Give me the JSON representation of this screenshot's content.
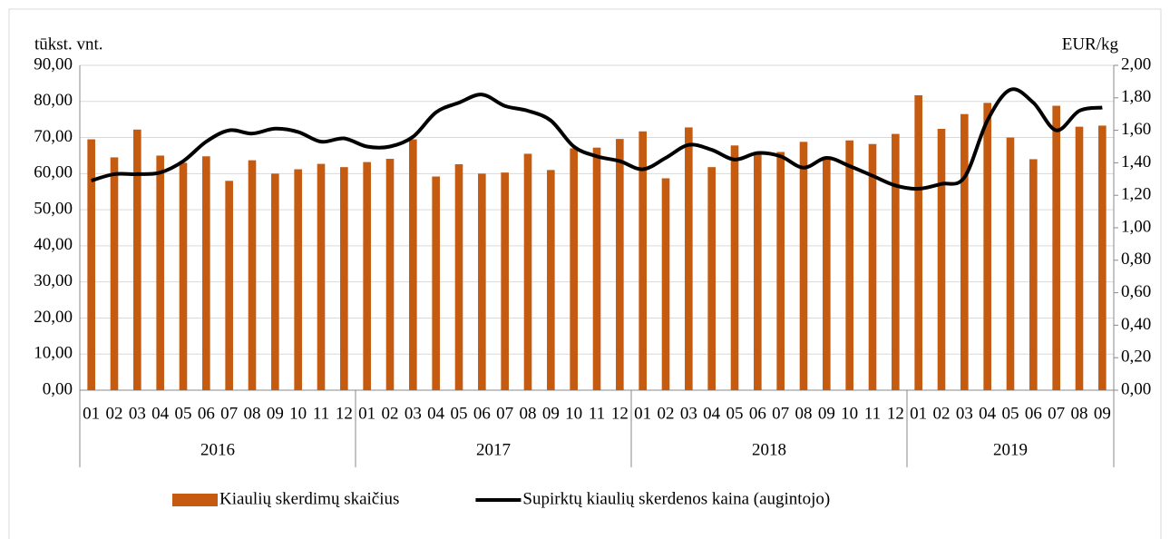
{
  "chart_data": {
    "type": "bar-line",
    "y_label": "tūkst. vnt.",
    "y2_label": "EUR/kg",
    "category_groups": [
      {
        "label": "2016",
        "categories": [
          "01",
          "02",
          "03",
          "04",
          "05",
          "06",
          "07",
          "08",
          "09",
          "10",
          "11",
          "12"
        ]
      },
      {
        "label": "2017",
        "categories": [
          "01",
          "02",
          "03",
          "04",
          "05",
          "06",
          "07",
          "08",
          "09",
          "10",
          "11",
          "12"
        ]
      },
      {
        "label": "2018",
        "categories": [
          "01",
          "02",
          "03",
          "04",
          "05",
          "06",
          "07",
          "08",
          "09",
          "10",
          "11",
          "12"
        ]
      },
      {
        "label": "2019",
        "categories": [
          "01",
          "02",
          "03",
          "04",
          "05",
          "06",
          "07",
          "08",
          "09"
        ]
      }
    ],
    "series": [
      {
        "name": "Kiaulių skerdimų skaičius",
        "type": "bar",
        "color": "#c55a11",
        "values": [
          69.5,
          64.5,
          72.2,
          65,
          63,
          64.8,
          58,
          63.7,
          60,
          61.2,
          62.7,
          61.8,
          63.2,
          64.1,
          69.5,
          59.2,
          62.6,
          60,
          60.3,
          65.5,
          61,
          67,
          67.2,
          69.6,
          71.7,
          58.7,
          72.8,
          61.8,
          67.8,
          66,
          66,
          68.8,
          64,
          69.2,
          68.2,
          71,
          81.7,
          72.4,
          76.5,
          79.6,
          70,
          64,
          78.8,
          73,
          73.3
        ]
      },
      {
        "name": "Supirktų kiaulių skerdenos kaina (augintojo)",
        "type": "line",
        "axis": "y2",
        "color": "#000000",
        "values": [
          1.29,
          1.33,
          1.33,
          1.34,
          1.41,
          1.53,
          1.6,
          1.58,
          1.61,
          1.59,
          1.53,
          1.55,
          1.5,
          1.5,
          1.56,
          1.71,
          1.77,
          1.82,
          1.75,
          1.72,
          1.66,
          1.5,
          1.44,
          1.41,
          1.36,
          1.43,
          1.51,
          1.48,
          1.42,
          1.46,
          1.44,
          1.37,
          1.43,
          1.38,
          1.32,
          1.26,
          1.24,
          1.27,
          1.31,
          1.66,
          1.85,
          1.77,
          1.6,
          1.72,
          1.74
        ]
      }
    ],
    "ylim": [
      0,
      90
    ],
    "yticks": [
      {
        "value": 0,
        "label": "0,00"
      },
      {
        "value": 10,
        "label": "10,00"
      },
      {
        "value": 20,
        "label": "20,00"
      },
      {
        "value": 30,
        "label": "30,00"
      },
      {
        "value": 40,
        "label": "40,00"
      },
      {
        "value": 50,
        "label": "50,00"
      },
      {
        "value": 60,
        "label": "60,00"
      },
      {
        "value": 70,
        "label": "70,00"
      },
      {
        "value": 80,
        "label": "80,00"
      },
      {
        "value": 90,
        "label": "90,00"
      }
    ],
    "y2lim": [
      0,
      2
    ],
    "y2ticks": [
      {
        "value": 0,
        "label": "0,00"
      },
      {
        "value": 0.2,
        "label": "0,20"
      },
      {
        "value": 0.4,
        "label": "0,40"
      },
      {
        "value": 0.6,
        "label": "0,60"
      },
      {
        "value": 0.8,
        "label": "0,80"
      },
      {
        "value": 1,
        "label": "1,00"
      },
      {
        "value": 1.2,
        "label": "1,20"
      },
      {
        "value": 1.4,
        "label": "1,40"
      },
      {
        "value": 1.6,
        "label": "1,60"
      },
      {
        "value": 1.8,
        "label": "1,80"
      },
      {
        "value": 2,
        "label": "2,00"
      }
    ],
    "legend": "bottom"
  }
}
